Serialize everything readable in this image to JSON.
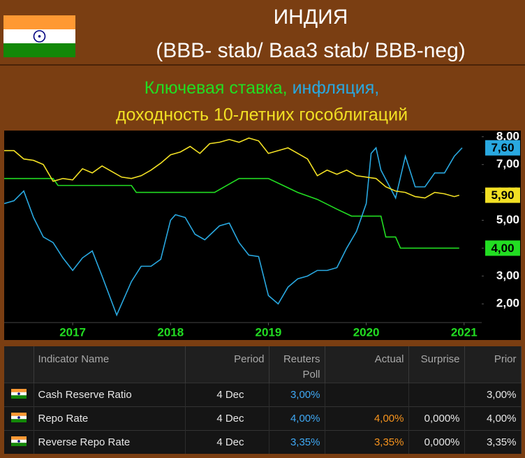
{
  "header": {
    "title": "ИНДИЯ",
    "subtitle": "(BBB- stab/ Baa3 stab/ BBB-neg)"
  },
  "chart_data": {
    "type": "line",
    "xlim": [
      2016.3,
      2021.18
    ],
    "xticks": [
      2017,
      2018,
      2019,
      2020,
      2021
    ],
    "ylim": [
      1.33,
      8.22
    ],
    "yticks": [
      {
        "value": 2,
        "label": "2,00"
      },
      {
        "value": 3,
        "label": "3,00"
      },
      {
        "value": 4,
        "label": "4,00"
      },
      {
        "value": 5,
        "label": "5,00"
      },
      {
        "value": 6,
        "label": "6,00"
      },
      {
        "value": 7,
        "label": "7,00"
      },
      {
        "value": 8,
        "label": "8,00"
      }
    ],
    "series": [
      {
        "name": "Ключевая ставка,",
        "color": "#22dd22",
        "x": [
          2016.3,
          2016.8,
          2016.85,
          2017.6,
          2017.65,
          2018.45,
          2018.7,
          2019.0,
          2019.15,
          2019.3,
          2019.5,
          2019.7,
          2019.85,
          2020.15,
          2020.2,
          2020.3,
          2020.35,
          2020.95
        ],
        "values": [
          6.5,
          6.5,
          6.25,
          6.25,
          6.0,
          6.0,
          6.5,
          6.5,
          6.25,
          6.0,
          5.75,
          5.4,
          5.15,
          5.15,
          4.4,
          4.4,
          4.0,
          4.0
        ],
        "value_labels": [
          null,
          null,
          null,
          null,
          null,
          null,
          null,
          null,
          null,
          null,
          null,
          null,
          null,
          null,
          null,
          null,
          null,
          "4,00"
        ]
      },
      {
        "name": "инфляция,",
        "color": "#29a8e0",
        "x": [
          2016.3,
          2016.4,
          2016.5,
          2016.6,
          2016.7,
          2016.8,
          2016.9,
          2017.0,
          2017.1,
          2017.2,
          2017.3,
          2017.45,
          2017.6,
          2017.7,
          2017.8,
          2017.9,
          2018.0,
          2018.05,
          2018.15,
          2018.25,
          2018.35,
          2018.5,
          2018.6,
          2018.7,
          2018.8,
          2018.9,
          2019.0,
          2019.1,
          2019.2,
          2019.3,
          2019.4,
          2019.5,
          2019.6,
          2019.7,
          2019.8,
          2019.9,
          2020.0,
          2020.05,
          2020.1,
          2020.15,
          2020.3,
          2020.4,
          2020.5,
          2020.6,
          2020.7,
          2020.8,
          2020.9,
          2020.98
        ],
        "values": [
          5.6,
          5.7,
          6.05,
          5.1,
          4.4,
          4.2,
          3.65,
          3.2,
          3.65,
          3.9,
          3.0,
          1.6,
          2.8,
          3.35,
          3.35,
          3.6,
          5.0,
          5.2,
          5.1,
          4.5,
          4.3,
          4.8,
          4.9,
          4.2,
          3.75,
          3.7,
          2.3,
          2.0,
          2.6,
          2.9,
          3.0,
          3.2,
          3.2,
          3.3,
          4.0,
          4.6,
          5.6,
          7.4,
          7.6,
          6.8,
          5.8,
          7.3,
          6.2,
          6.2,
          6.7,
          6.7,
          7.3,
          7.6
        ],
        "value_labels": [
          null,
          null,
          null,
          null,
          null,
          null,
          null,
          null,
          null,
          null,
          null,
          null,
          null,
          null,
          null,
          null,
          null,
          null,
          null,
          null,
          null,
          null,
          null,
          null,
          null,
          null,
          null,
          null,
          null,
          null,
          null,
          null,
          null,
          null,
          null,
          null,
          null,
          null,
          null,
          null,
          null,
          null,
          null,
          null,
          null,
          null,
          null,
          "7,60"
        ]
      },
      {
        "name": "доходность 10-летних гособлигаций",
        "color": "#f2e024",
        "x": [
          2016.3,
          2016.4,
          2016.5,
          2016.6,
          2016.7,
          2016.8,
          2016.9,
          2017.0,
          2017.1,
          2017.2,
          2017.3,
          2017.4,
          2017.5,
          2017.6,
          2017.7,
          2017.8,
          2017.9,
          2018.0,
          2018.1,
          2018.2,
          2018.3,
          2018.4,
          2018.5,
          2018.6,
          2018.7,
          2018.8,
          2018.9,
          2019.0,
          2019.1,
          2019.2,
          2019.3,
          2019.4,
          2019.5,
          2019.6,
          2019.7,
          2019.8,
          2019.9,
          2020.0,
          2020.1,
          2020.2,
          2020.3,
          2020.4,
          2020.5,
          2020.6,
          2020.7,
          2020.8,
          2020.9,
          2020.95
        ],
        "values": [
          7.5,
          7.5,
          7.2,
          7.15,
          7.0,
          6.4,
          6.5,
          6.45,
          6.85,
          6.7,
          6.95,
          6.75,
          6.55,
          6.5,
          6.6,
          6.8,
          7.05,
          7.35,
          7.45,
          7.65,
          7.4,
          7.75,
          7.8,
          7.9,
          7.8,
          7.95,
          7.85,
          7.4,
          7.5,
          7.6,
          7.4,
          7.2,
          6.6,
          6.8,
          6.65,
          6.8,
          6.6,
          6.55,
          6.5,
          6.2,
          6.05,
          6.0,
          5.85,
          5.8,
          6.0,
          5.95,
          5.85,
          5.9
        ],
        "value_labels": [
          null,
          null,
          null,
          null,
          null,
          null,
          null,
          null,
          null,
          null,
          null,
          null,
          null,
          null,
          null,
          null,
          null,
          null,
          null,
          null,
          null,
          null,
          null,
          null,
          null,
          null,
          null,
          null,
          null,
          null,
          null,
          null,
          null,
          null,
          null,
          null,
          null,
          null,
          null,
          null,
          null,
          null,
          null,
          null,
          null,
          null,
          null,
          "5,90"
        ]
      }
    ]
  },
  "table": {
    "columns": [
      "Indicator Name",
      "Period",
      "Reuters Poll",
      "Actual",
      "Surprise",
      "Prior"
    ],
    "rows": [
      [
        "Cash Reserve Ratio",
        "4 Dec",
        "3,00%",
        null,
        null,
        "3,00%"
      ],
      [
        "Repo Rate",
        "4 Dec",
        "4,00%",
        "4,00%",
        "0,000%",
        "4,00%"
      ],
      [
        "Reverse Repo Rate",
        "4 Dec",
        "3,35%",
        "3,35%",
        "0,000%",
        "3,35%"
      ]
    ]
  }
}
